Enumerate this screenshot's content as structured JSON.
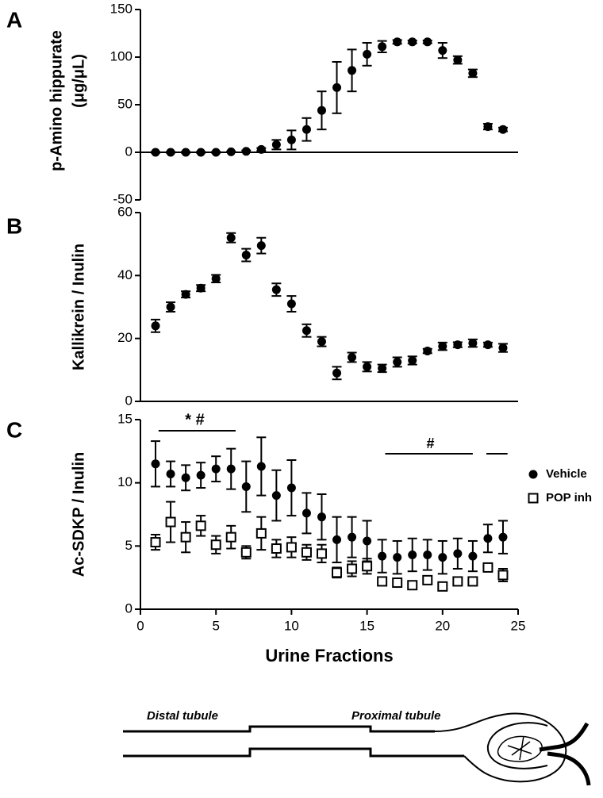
{
  "chart_data": [
    {
      "type": "scatter",
      "panel_label": "A",
      "ylabel": "p-Amino hippurate",
      "ylabel_unit": "(μg/μL)",
      "x": [
        1,
        2,
        3,
        4,
        5,
        6,
        7,
        8,
        9,
        10,
        11,
        12,
        13,
        14,
        15,
        16,
        17,
        18,
        19,
        20,
        21,
        22,
        23,
        24
      ],
      "ylim": [
        -50,
        150
      ],
      "yticks": [
        -50,
        0,
        50,
        100,
        150
      ],
      "series": [
        {
          "color": "#000000",
          "marker": "circle",
          "values": [
            0,
            0,
            0,
            0,
            0,
            0.5,
            1,
            3,
            8,
            13,
            24,
            44,
            68,
            86,
            103,
            111,
            116,
            116,
            116,
            107,
            97,
            83,
            27,
            24
          ],
          "errors": [
            0.5,
            0.5,
            0.5,
            0.5,
            0.5,
            0.5,
            1,
            1.5,
            5,
            10,
            12,
            20,
            27,
            22,
            12,
            6,
            2,
            1.5,
            1.5,
            8,
            4,
            4,
            3,
            2
          ]
        }
      ]
    },
    {
      "type": "scatter",
      "panel_label": "B",
      "ylabel": "Kallikrein / Inulin",
      "x": [
        1,
        2,
        3,
        4,
        5,
        6,
        7,
        8,
        9,
        10,
        11,
        12,
        13,
        14,
        15,
        16,
        17,
        18,
        19,
        20,
        21,
        22,
        23,
        24
      ],
      "ylim": [
        0,
        60
      ],
      "yticks": [
        0,
        20,
        40,
        60
      ],
      "series": [
        {
          "color": "#000000",
          "marker": "circle",
          "values": [
            24,
            30,
            34,
            36,
            39,
            52,
            46.5,
            49.5,
            35.5,
            31,
            22.5,
            19,
            9,
            14,
            11,
            10.5,
            12.5,
            13,
            16,
            17.5,
            18,
            18.5,
            18,
            17
          ],
          "errors": [
            2,
            1.5,
            1,
            1,
            1.2,
            1.5,
            2,
            2.5,
            2,
            2.5,
            2,
            1.5,
            2,
            1.5,
            1.5,
            1.2,
            1.5,
            1.3,
            0.7,
            1.2,
            0.8,
            1.2,
            0.7,
            1.3
          ]
        }
      ]
    },
    {
      "type": "scatter",
      "panel_label": "C",
      "ylabel": "Ac-SDKP / Inulin",
      "xlabel": "Urine Fractions",
      "x": [
        1,
        2,
        3,
        4,
        5,
        6,
        7,
        8,
        9,
        10,
        11,
        12,
        13,
        14,
        15,
        16,
        17,
        18,
        19,
        20,
        21,
        22,
        23,
        24
      ],
      "xlim": [
        0,
        25
      ],
      "xticks": [
        0,
        5,
        10,
        15,
        20,
        25
      ],
      "ylim": [
        0,
        15
      ],
      "yticks": [
        0,
        5,
        10,
        15
      ],
      "annotations": [
        "* #",
        "#"
      ],
      "legend": "right",
      "series": [
        {
          "name": "Vehicle",
          "color": "#000000",
          "marker": "circle",
          "values": [
            11.5,
            10.7,
            10.4,
            10.6,
            11.1,
            11.1,
            9.7,
            11.3,
            9,
            9.6,
            7.6,
            7.3,
            5.5,
            5.7,
            5.4,
            4.2,
            4.1,
            4.3,
            4.3,
            4.1,
            4.4,
            4.2,
            5.6,
            5.7
          ],
          "errors": [
            1.8,
            1,
            1,
            1,
            1,
            1.6,
            2,
            2.3,
            2,
            2.2,
            1.6,
            1.8,
            1.8,
            1.6,
            1.6,
            1.3,
            1.3,
            1.3,
            1.2,
            1.3,
            1.2,
            1.2,
            1.1,
            1.3
          ]
        },
        {
          "name": "POP inh",
          "color": "#000000",
          "marker": "square",
          "values": [
            5.3,
            6.9,
            5.7,
            6.6,
            5.1,
            5.7,
            4.5,
            6,
            4.8,
            4.9,
            4.5,
            4.4,
            2.9,
            3.2,
            3.4,
            2.2,
            2.1,
            1.9,
            2.3,
            1.8,
            2.2,
            2.2,
            3.3,
            2.7
          ],
          "errors": [
            0.6,
            1.6,
            1.2,
            0.8,
            0.7,
            0.9,
            0.5,
            1.3,
            0.7,
            0.8,
            0.6,
            0.7,
            0.4,
            0.6,
            0.6,
            0.3,
            0.2,
            0.2,
            0.3,
            0.2,
            0.2,
            0.2,
            0.3,
            0.5
          ]
        }
      ]
    }
  ],
  "diagram": {
    "labels": [
      "Distal tubule",
      "Proximal tubule"
    ]
  }
}
